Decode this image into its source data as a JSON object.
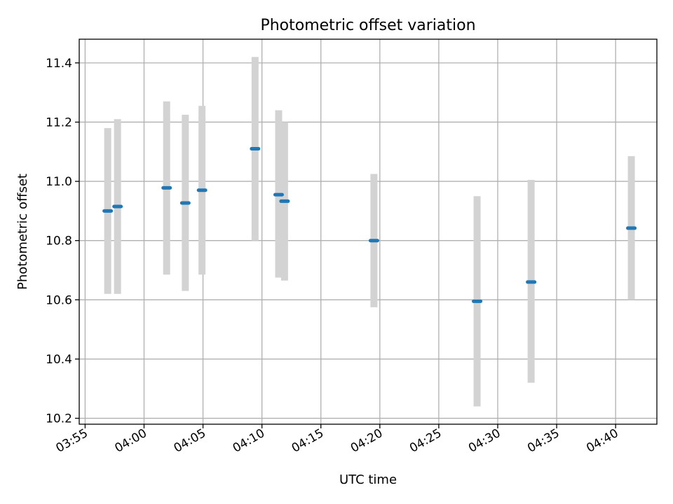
{
  "chart_data": {
    "type": "scatter",
    "title": "Photometric offset variation",
    "xlabel": "UTC time",
    "ylabel": "Photometric offset",
    "grid": true,
    "x_ticks": [
      "03:55",
      "04:00",
      "04:05",
      "04:10",
      "04:15",
      "04:20",
      "04:25",
      "04:30",
      "04:35",
      "04:40"
    ],
    "xlim": [
      "03:54:30",
      "04:43:30"
    ],
    "ylim": [
      10.18,
      11.48
    ],
    "y_ticks": [
      10.2,
      10.4,
      10.6,
      10.8,
      11.0,
      11.2,
      11.4
    ],
    "point_color": "#1f77b4",
    "errorbar_color": "#d3d3d3",
    "points": [
      {
        "x": "03:56:55",
        "y": 10.9,
        "err_low": 10.62,
        "err_high": 11.18
      },
      {
        "x": "03:57:45",
        "y": 10.915,
        "err_low": 10.62,
        "err_high": 11.21
      },
      {
        "x": "04:01:55",
        "y": 10.978,
        "err_low": 10.685,
        "err_high": 11.27
      },
      {
        "x": "04:03:30",
        "y": 10.927,
        "err_low": 10.63,
        "err_high": 11.225
      },
      {
        "x": "04:04:55",
        "y": 10.97,
        "err_low": 10.685,
        "err_high": 11.255
      },
      {
        "x": "04:09:25",
        "y": 11.11,
        "err_low": 10.8,
        "err_high": 11.42
      },
      {
        "x": "04:11:25",
        "y": 10.955,
        "err_low": 10.675,
        "err_high": 11.24
      },
      {
        "x": "04:11:55",
        "y": 10.933,
        "err_low": 10.665,
        "err_high": 11.2
      },
      {
        "x": "04:19:30",
        "y": 10.8,
        "err_low": 10.575,
        "err_high": 11.025
      },
      {
        "x": "04:28:15",
        "y": 10.595,
        "err_low": 10.24,
        "err_high": 10.95
      },
      {
        "x": "04:32:50",
        "y": 10.66,
        "err_low": 10.32,
        "err_high": 11.005
      },
      {
        "x": "04:41:20",
        "y": 10.842,
        "err_low": 10.6,
        "err_high": 11.085
      }
    ]
  }
}
